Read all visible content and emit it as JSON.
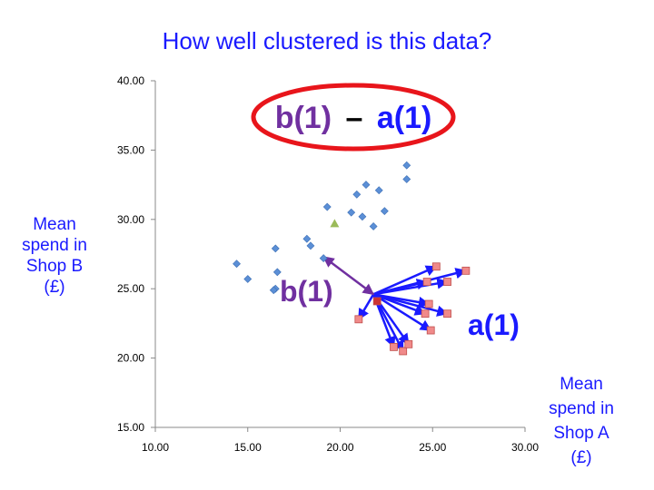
{
  "slide": {
    "title": "How well clustered is this data?",
    "ylabel": "Mean\nspend in\nShop B\n(£)",
    "xlabel": "Mean\nspend in\nShop A\n(£)"
  },
  "annotations": {
    "formula_b": "b(1)",
    "formula_minus": "–",
    "formula_a": "a(1)",
    "b_label": "b(1)",
    "a_label": "a(1)",
    "colors": {
      "b": "#7030a0",
      "a": "#1a1aff",
      "ellipse": "#e8151b",
      "minus": "#000000"
    }
  },
  "chart_data": {
    "type": "scatter",
    "xlim": [
      10,
      30
    ],
    "ylim": [
      15,
      40
    ],
    "x_ticks": [
      "10.00",
      "15.00",
      "20.00",
      "25.00",
      "30.00"
    ],
    "y_ticks": [
      "15.00",
      "20.00",
      "25.00",
      "30.00",
      "35.00",
      "40.00"
    ],
    "grid": false,
    "series": [
      {
        "marker": "diamond",
        "color": "#5b8fd6",
        "points": [
          [
            14.4,
            26.8
          ],
          [
            15.0,
            25.7
          ],
          [
            16.5,
            27.9
          ],
          [
            16.6,
            26.2
          ],
          [
            16.5,
            25.0
          ],
          [
            16.4,
            24.9
          ],
          [
            18.2,
            28.6
          ],
          [
            18.4,
            28.1
          ],
          [
            19.1,
            27.2
          ],
          [
            19.3,
            30.9
          ],
          [
            20.6,
            30.5
          ],
          [
            20.9,
            31.8
          ],
          [
            21.2,
            30.2
          ],
          [
            21.4,
            32.5
          ],
          [
            21.8,
            29.5
          ],
          [
            22.1,
            32.1
          ],
          [
            22.4,
            30.6
          ],
          [
            23.6,
            33.9
          ],
          [
            23.6,
            32.9
          ]
        ]
      },
      {
        "marker": "square",
        "color": "#f08a8a",
        "points": [
          [
            21.0,
            22.8
          ],
          [
            22.9,
            20.8
          ],
          [
            23.4,
            20.5
          ],
          [
            23.7,
            21.0
          ],
          [
            24.9,
            22.0
          ],
          [
            24.8,
            23.9
          ],
          [
            24.6,
            23.2
          ],
          [
            25.2,
            26.6
          ],
          [
            25.8,
            25.5
          ],
          [
            25.8,
            23.2
          ],
          [
            26.8,
            26.3
          ],
          [
            24.7,
            25.5
          ]
        ]
      },
      {
        "marker": "triangle",
        "color": "#9bbb59",
        "points": [
          [
            19.7,
            29.7
          ]
        ]
      },
      {
        "marker": "square",
        "color": "#cc3333",
        "points": [
          [
            22.0,
            24.1
          ]
        ]
      }
    ],
    "a_arrows": {
      "origin": [
        21.8,
        24.6
      ],
      "targets": [
        [
          21.0,
          22.8
        ],
        [
          22.9,
          20.8
        ],
        [
          23.4,
          20.5
        ],
        [
          23.7,
          21.0
        ],
        [
          24.9,
          22.0
        ],
        [
          24.8,
          23.9
        ],
        [
          24.6,
          23.2
        ],
        [
          25.2,
          26.6
        ],
        [
          25.8,
          25.5
        ],
        [
          25.8,
          23.2
        ],
        [
          26.8,
          26.3
        ],
        [
          24.7,
          25.5
        ]
      ]
    },
    "b_arrow": {
      "from": [
        21.8,
        24.6
      ],
      "to": [
        19.1,
        27.3
      ]
    }
  }
}
